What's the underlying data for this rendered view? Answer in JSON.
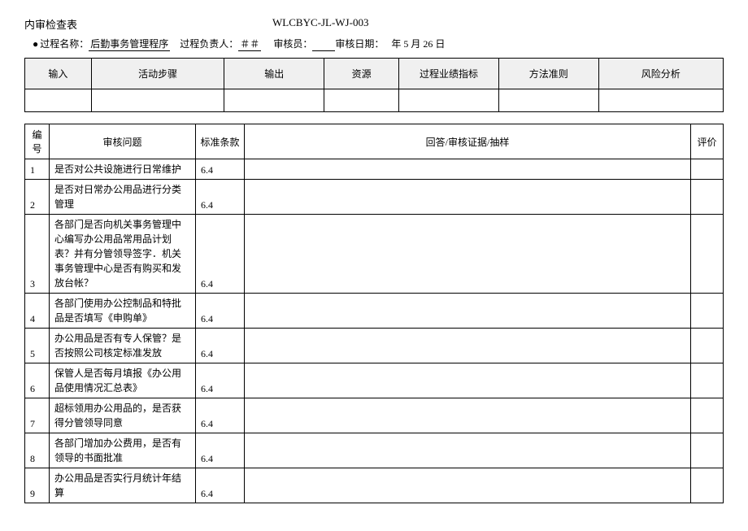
{
  "header": {
    "title": "内审检查表",
    "doc_code": "WLCBYC-JL-WJ-003"
  },
  "info": {
    "label_process_name": "过程名称：",
    "process_name": "后勤事务管理程序",
    "label_owner": "过程负责人：",
    "owner": "＃＃",
    "label_auditor": "审核员：",
    "label_audit_date": "审核日期：",
    "audit_date_suffix": "年 5 月 26 日"
  },
  "table1": {
    "cols": [
      "输入",
      "活动步骤",
      "输出",
      "资源",
      "过程业绩指标",
      "方法准则",
      "风险分析"
    ]
  },
  "table2": {
    "cols": [
      "编号",
      "审核问题",
      "标准条款",
      "回答/审核证据/抽样",
      "评价"
    ],
    "rows": [
      {
        "num": "1",
        "q": "是否对公共设施进行日常维护",
        "clause": "6.4"
      },
      {
        "num": "2",
        "q": "是否对日常办公用品进行分类管理",
        "clause": "6.4"
      },
      {
        "num": "3",
        "q": "各部门是否向机关事务管理中心编写办公用品常用品计划表？并有分管领导签字．机关事务管理中心是否有购买和发放台帐？",
        "clause": "6.4"
      },
      {
        "num": "4",
        "q": "各部门使用办公控制品和特批品是否填写《申购单》",
        "clause": "6.4"
      },
      {
        "num": "5",
        "q": "办公用品是否有专人保管？是否按照公司核定标准发放",
        "clause": "6.4"
      },
      {
        "num": "6",
        "q": "保管人是否每月填报《办公用品使用情况汇总表》",
        "clause": "6.4"
      },
      {
        "num": "7",
        "q": "超标领用办公用品的，是否获得分管领导同意",
        "clause": "6.4"
      },
      {
        "num": "8",
        "q": "各部门增加办公费用，是否有领导的书面批准",
        "clause": "6.4"
      },
      {
        "num": "9",
        "q": "办公用品是否实行月统计年结算",
        "clause": "6.4"
      }
    ]
  }
}
